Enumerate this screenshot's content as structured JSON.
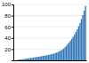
{
  "chart_data": {
    "type": "bar",
    "categories": [
      null,
      null,
      null,
      null,
      null,
      null,
      null,
      null,
      null,
      null,
      null,
      null,
      null,
      null,
      null,
      null,
      null,
      null,
      null,
      null,
      null,
      null,
      null,
      null,
      null,
      null,
      null,
      null,
      null,
      null,
      null,
      null,
      null,
      null,
      null,
      null,
      null,
      null,
      null,
      null,
      null,
      null,
      null,
      null,
      null,
      null,
      null,
      null,
      null,
      null,
      null,
      null,
      null
    ],
    "values": [
      167,
      369,
      606,
      911,
      1247,
      1583,
      1949,
      2311,
      2694,
      3079,
      3471,
      3865,
      4228,
      4605,
      4980,
      5378,
      5770,
      6170,
      6579,
      6991,
      7415,
      7840,
      8290,
      8750,
      9200,
      9680,
      10250,
      10850,
      11500,
      12200,
      13050,
      13900,
      14900,
      16100,
      17400,
      19000,
      20900,
      23300,
      26000,
      29300,
      32000,
      35300,
      38500,
      42200,
      46300,
      50700,
      55500,
      61000,
      67000,
      73800,
      80900,
      88700,
      97200
    ],
    "color": "#2e75b6",
    "ylim": [
      0,
      100000
    ],
    "yticks": [
      {
        "value": 20000,
        "label": "20"
      },
      {
        "value": 40000,
        "label": "40"
      },
      {
        "value": 60000,
        "label": "60"
      },
      {
        "value": 80000,
        "label": "80"
      },
      {
        "value": 100000,
        "label": "100"
      }
    ],
    "grid": true,
    "tick_labels": "y"
  }
}
